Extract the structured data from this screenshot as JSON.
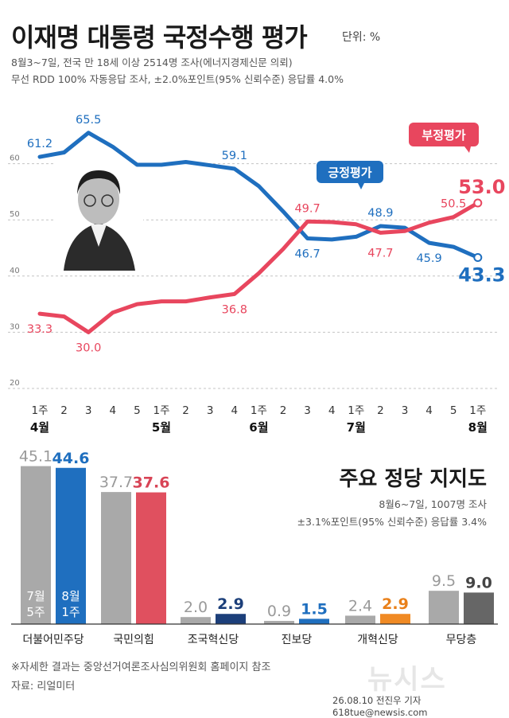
{
  "title": "이재명 대통령 국정수행 평가",
  "unit": "단위: %",
  "survey_info": [
    "8월3~7일, 전국 만 18세 이상 2514명 조사(에너지경제신문 의뢰)",
    "무선 RDD 100% 자동응답 조사, ±2.0%포인트(95% 신뢰수준) 응답률 4.0%"
  ],
  "colors": {
    "positive": "#1f6fbf",
    "negative": "#e8465e",
    "grid": "#bbbbbb",
    "photo_bg": "#ffffff"
  },
  "icons": [
    "president-photo"
  ],
  "chart_data": [
    {
      "type": "line",
      "title": "이재명 대통령 국정수행 평가",
      "y_ticks": [
        20,
        30,
        40,
        50,
        60
      ],
      "ylim": [
        20,
        70
      ],
      "x_labels": [
        "1주",
        "2",
        "3",
        "4",
        "5",
        "1주",
        "2",
        "3",
        "4",
        "1주",
        "2",
        "3",
        "4",
        "1주",
        "2",
        "3",
        "4",
        "5",
        "1주"
      ],
      "month_labels": [
        {
          "label": "4월",
          "index": 0
        },
        {
          "label": "5월",
          "index": 5
        },
        {
          "label": "6월",
          "index": 9
        },
        {
          "label": "7월",
          "index": 13
        },
        {
          "label": "8월",
          "index": 18
        }
      ],
      "series": [
        {
          "name": "긍정평가",
          "color": "#1f6fbf",
          "values": [
            61.2,
            62.0,
            65.5,
            63.0,
            59.8,
            59.8,
            60.3,
            59.7,
            59.1,
            56.0,
            51.5,
            46.7,
            46.5,
            47.0,
            48.9,
            48.6,
            45.9,
            45.2,
            43.3
          ]
        },
        {
          "name": "부정평가",
          "color": "#e8465e",
          "values": [
            33.3,
            32.8,
            30.0,
            33.5,
            35.0,
            35.5,
            35.5,
            36.2,
            36.8,
            40.5,
            44.8,
            49.7,
            49.6,
            49.2,
            47.7,
            48.0,
            49.5,
            50.5,
            53.0
          ]
        }
      ],
      "labeled_points": [
        {
          "series": 0,
          "index": 0,
          "text": "61.2"
        },
        {
          "series": 0,
          "index": 2,
          "text": "65.5"
        },
        {
          "series": 0,
          "index": 8,
          "text": "59.1"
        },
        {
          "series": 0,
          "index": 11,
          "text": "46.7"
        },
        {
          "series": 0,
          "index": 14,
          "text": "48.9"
        },
        {
          "series": 0,
          "index": 16,
          "text": "45.9"
        },
        {
          "series": 0,
          "index": 18,
          "text": "43.3",
          "final": true
        },
        {
          "series": 1,
          "index": 0,
          "text": "33.3"
        },
        {
          "series": 1,
          "index": 2,
          "text": "30.0"
        },
        {
          "series": 1,
          "index": 8,
          "text": "36.8"
        },
        {
          "series": 1,
          "index": 11,
          "text": "49.7"
        },
        {
          "series": 1,
          "index": 14,
          "text": "47.7"
        },
        {
          "series": 1,
          "index": 17,
          "text": "50.5"
        },
        {
          "series": 1,
          "index": 18,
          "text": "53.0",
          "final": true
        }
      ],
      "callouts": [
        {
          "series": 0,
          "text": "긍정평가",
          "index": 14
        },
        {
          "series": 1,
          "text": "부정평가",
          "index": 18
        }
      ]
    },
    {
      "type": "bar",
      "title": "주요 정당 지지도",
      "survey_info": [
        "8월6~7일, 1007명 조사",
        "±3.1%포인트(95% 신뢰수준) 응답률 3.4%"
      ],
      "categories": [
        "더불어민주당",
        "국민의힘",
        "조국혁신당",
        "진보당",
        "개혁신당",
        "무당층"
      ],
      "period_labels": {
        "prev": [
          "7월",
          "5주"
        ],
        "curr": [
          "8월",
          "1주"
        ]
      },
      "series": [
        {
          "name": "7월 5주",
          "values": [
            45.1,
            37.7,
            2.0,
            0.9,
            2.4,
            9.5
          ],
          "color": "#a9a9a9"
        },
        {
          "name": "8월 1주",
          "values": [
            44.6,
            37.6,
            2.9,
            1.5,
            2.9,
            9.0
          ],
          "colors": [
            "#1f6fbf",
            "#e0505f",
            "#1c3f7a",
            "#1f6fbf",
            "#f08a24",
            "#666666"
          ]
        }
      ],
      "value_texts": {
        "prev": [
          "45.1",
          "37.7",
          "2.0",
          "0.9",
          "2.4",
          "9.5"
        ],
        "curr": [
          "44.6",
          "37.6",
          "2.9",
          "1.5",
          "2.9",
          "9.0"
        ]
      },
      "value_colors": [
        "#1f6fbf",
        "#d84456",
        "#1c3f7a",
        "#1f6fbf",
        "#e9801a",
        "#444444"
      ]
    }
  ],
  "footnote": "※자세한 결과는 중앙선거여론조사심의위원회 홈페이지 참조",
  "source": "자료: 리얼미터",
  "watermark": "뉴시스",
  "credit": "26.08.10 전진우 기자 618tue@newsis.com"
}
